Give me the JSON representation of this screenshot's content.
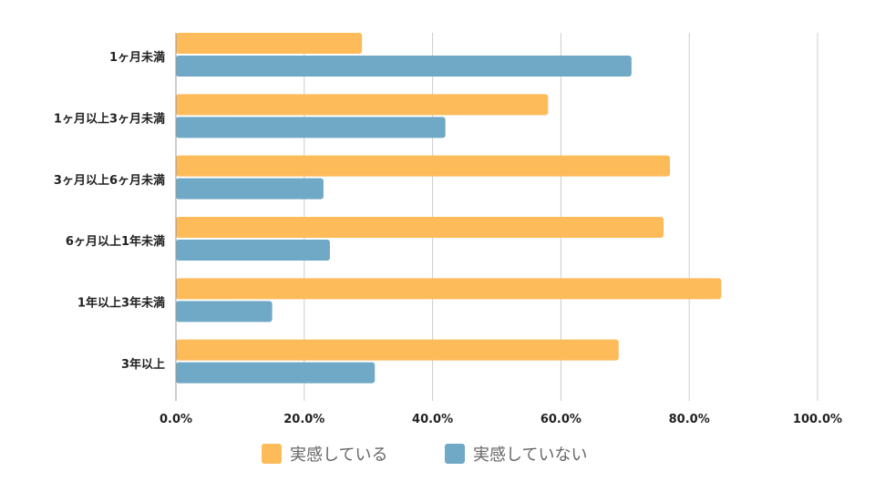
{
  "chart_data": {
    "type": "bar",
    "orientation": "horizontal",
    "categories": [
      "1ヶ月未満",
      "1ヶ月以上3ヶ月未満",
      "3ヶ月以上6ヶ月未満",
      "6ヶ月以上1年未満",
      "1年以上3年未満",
      "3年以上"
    ],
    "series": [
      {
        "name": "実感している",
        "color": "#FDBB5A",
        "values": [
          29,
          58,
          77,
          76,
          85,
          69
        ]
      },
      {
        "name": "実感していない",
        "color": "#70A9C6",
        "values": [
          71,
          42,
          23,
          24,
          15,
          31
        ]
      }
    ],
    "xlim": [
      0,
      100
    ],
    "ticks": [
      "0.0%",
      "20.0%",
      "40.0%",
      "60.0%",
      "80.0%",
      "100.0%"
    ],
    "grid": true,
    "legend_position": "bottom"
  }
}
